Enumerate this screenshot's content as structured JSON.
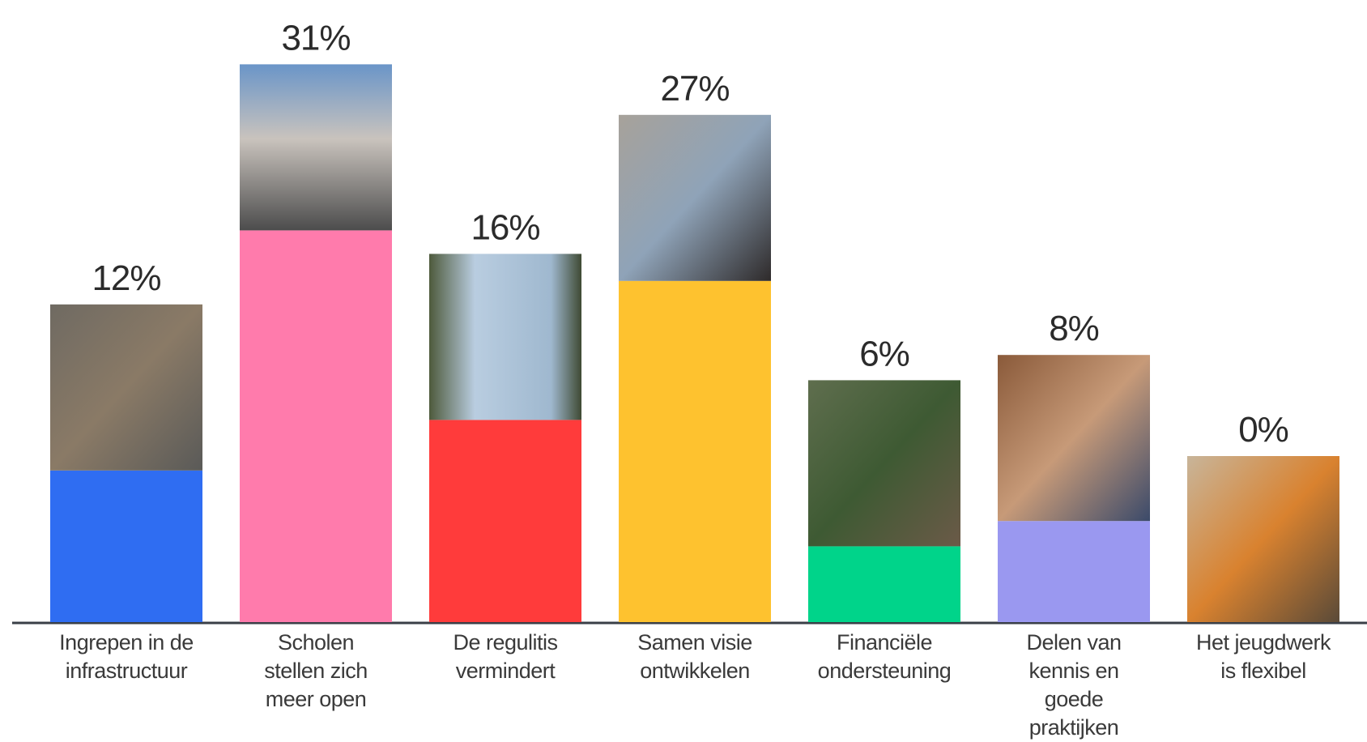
{
  "chart_data": {
    "type": "bar",
    "categories": [
      "Ingrepen in de infrastructuur",
      "Scholen stellen zich meer open",
      "De regulitis vermindert",
      "Samen visie ontwikkelen",
      "Financiële ondersteuning",
      "Delen van kennis en goede praktijken",
      "Het jeugdwerk is flexibel"
    ],
    "values": [
      12,
      31,
      16,
      27,
      6,
      8,
      0
    ],
    "value_labels": [
      "12%",
      "31%",
      "16%",
      "27%",
      "6%",
      "8%",
      "0%"
    ],
    "colors": [
      "#2f6df2",
      "#ff7bac",
      "#ff3b3b",
      "#fec22f",
      "#00d48a",
      "#9a98f0",
      "#9a98f0"
    ]
  }
}
